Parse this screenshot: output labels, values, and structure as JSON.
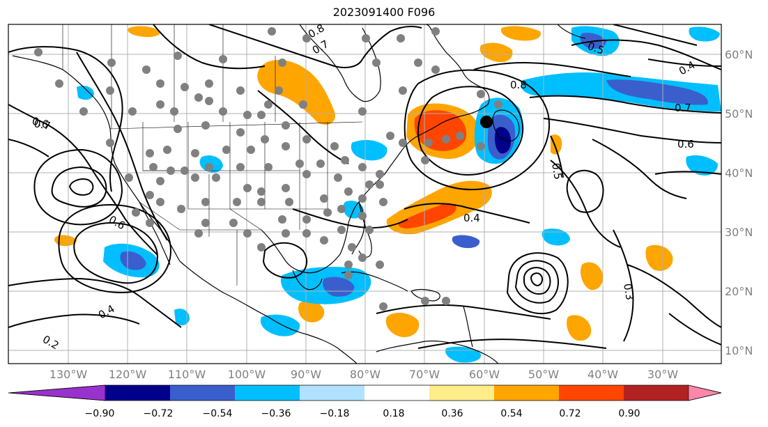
{
  "title": "2023091400 F096",
  "colors": {
    "grid": "#b0b0b0",
    "coast": "#000000",
    "contour": "#000000",
    "station": "#808080",
    "center_marker": "#000000"
  },
  "lat_labels": [
    "60°N",
    "50°N",
    "40°N",
    "30°N",
    "20°N",
    "10°N"
  ],
  "lon_labels": [
    "130°W",
    "120°W",
    "110°W",
    "100°W",
    "90°W",
    "80°W",
    "70°W",
    "60°W",
    "50°W",
    "40°W",
    "30°W"
  ],
  "colorbar": {
    "ticks": [
      "−0.90",
      "−0.72",
      "−0.54",
      "−0.36",
      "−0.18",
      "0.18",
      "0.36",
      "0.54",
      "0.72",
      "0.90"
    ],
    "colors": [
      "#9932cc",
      "#00008b",
      "#3a5fcd",
      "#00bfff",
      "#b0e2ff",
      "#ffffff",
      "#ffec8b",
      "#ffa500",
      "#ff4500",
      "#b22222",
      "#ff88aa"
    ]
  },
  "contour_labels": [
    "0.8",
    "0.7",
    "0.6",
    "0.5",
    "0.4",
    "0.8",
    "0.7",
    "0.7",
    "0.6",
    "0.5",
    "0.4",
    "0.3",
    "0.2",
    "0.6",
    "0.4"
  ]
}
